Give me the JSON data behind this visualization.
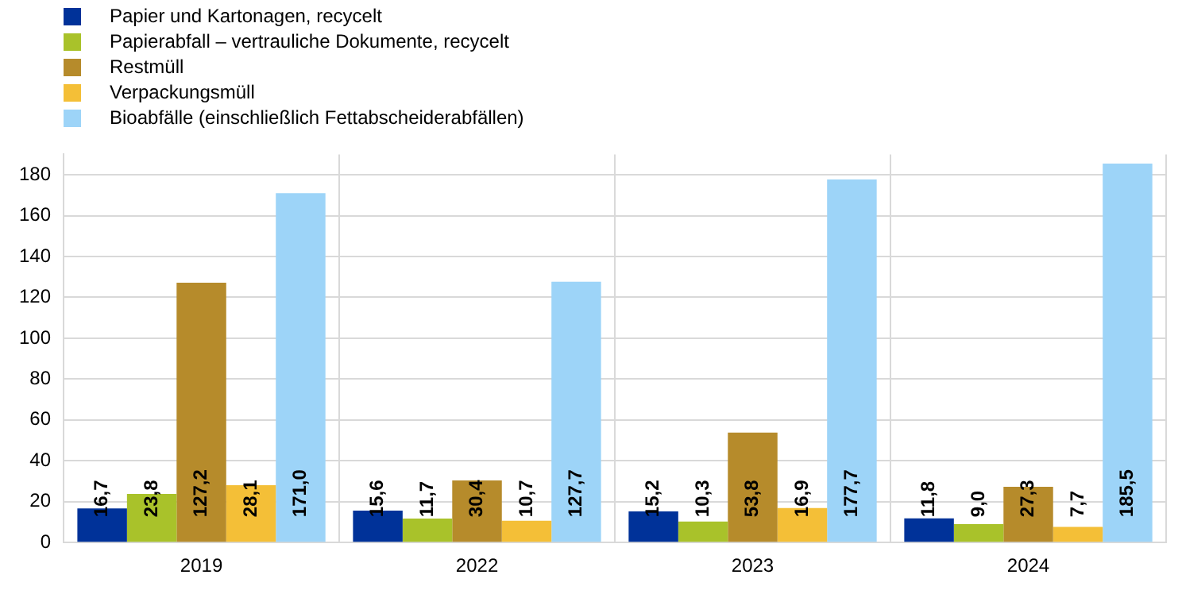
{
  "chart_data": {
    "type": "bar",
    "categories": [
      "2019",
      "2022",
      "2023",
      "2024"
    ],
    "series": [
      {
        "name": "Papier und Kartonagen, recycelt",
        "color": "#003299",
        "values": [
          16.7,
          15.6,
          15.2,
          11.8
        ],
        "value_labels": [
          "16,7",
          "15,6",
          "15,2",
          "11,8"
        ]
      },
      {
        "name": "Papierabfall – vertrauliche Dokumente, recycelt",
        "color": "#a9c22a",
        "values": [
          23.8,
          11.7,
          10.3,
          9.0
        ],
        "value_labels": [
          "23,8",
          "11,7",
          "10,3",
          "9,0"
        ]
      },
      {
        "name": "Restmüll",
        "color": "#b68b2b",
        "values": [
          127.2,
          30.4,
          53.8,
          27.3
        ],
        "value_labels": [
          "127,2",
          "30,4",
          "53,8",
          "27,3"
        ]
      },
      {
        "name": "Verpackungsmüll",
        "color": "#f4bf37",
        "values": [
          28.1,
          10.7,
          16.9,
          7.7
        ],
        "value_labels": [
          "28,1",
          "10,7",
          "16,9",
          "7,7"
        ]
      },
      {
        "name": "Bioabfälle (einschließlich Fettabscheiderabfällen)",
        "color": "#9dd4f8",
        "values": [
          171.0,
          127.7,
          177.7,
          185.5
        ],
        "value_labels": [
          "171,0",
          "127,7",
          "177,7",
          "185,5"
        ]
      }
    ],
    "ylim": [
      0,
      190
    ],
    "yticks": [
      0,
      20,
      40,
      60,
      80,
      100,
      120,
      140,
      160,
      180
    ],
    "grid": true,
    "legend": "top left"
  }
}
